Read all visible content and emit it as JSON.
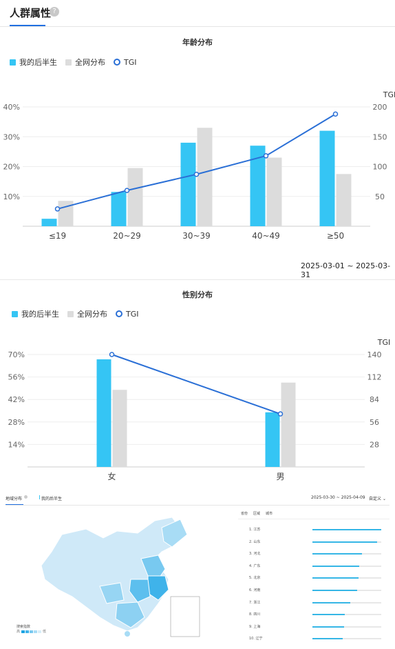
{
  "header": {
    "title": "人群属性",
    "help_icon": "?"
  },
  "age_chart": {
    "title": "年龄分布",
    "date_range": "2025-03-01 ~ 2025-03-31",
    "legend": {
      "series_a": "我的后半生",
      "series_b": "全网分布",
      "line": "TGI"
    }
  },
  "gender_chart": {
    "title": "性别分布",
    "legend": {
      "series_a": "我的后半生",
      "series_b": "全网分布",
      "line": "TGI"
    }
  },
  "geo": {
    "tab_active": "地域分布",
    "tab_filter": "我的后半生",
    "date_range": "2025-03-30 ~ 2025-04-09",
    "custom": "自定义",
    "subtabs": [
      "省份",
      "区域",
      "城市"
    ],
    "map_legend_title": "搜索指数",
    "map_legend_high": "高",
    "map_legend_low": "低",
    "ranking": [
      {
        "label": "1.  江苏",
        "value": 1.0
      },
      {
        "label": "2.  山东",
        "value": 0.94
      },
      {
        "label": "3.  河北",
        "value": 0.72
      },
      {
        "label": "4.  广东",
        "value": 0.68
      },
      {
        "label": "5.  北京",
        "value": 0.67
      },
      {
        "label": "6.  河南",
        "value": 0.65
      },
      {
        "label": "7.  浙江",
        "value": 0.55
      },
      {
        "label": "8.  四川",
        "value": 0.47
      },
      {
        "label": "9.  上海",
        "value": 0.46
      },
      {
        "label": "10. 辽宁",
        "value": 0.44
      }
    ]
  },
  "colors": {
    "series_a": "#35c5f4",
    "series_b": "#dcdcdc",
    "line": "#2a6fd6",
    "accent": "#1f6fe0"
  },
  "chart_data": [
    {
      "type": "bar",
      "title": "年龄分布",
      "categories": [
        "≤19",
        "20~29",
        "30~39",
        "40~49",
        "≥50"
      ],
      "series": [
        {
          "name": "我的后半生",
          "values": [
            2.5,
            11.5,
            28,
            27,
            32
          ]
        },
        {
          "name": "全网分布",
          "values": [
            8.5,
            19.5,
            33,
            23,
            17.5
          ]
        },
        {
          "name": "TGI",
          "values": [
            29,
            60,
            87,
            118,
            188
          ],
          "axis": "right",
          "render": "line"
        }
      ],
      "ylabel_right": "TGI",
      "left_ticks": [
        "10%",
        "20%",
        "30%",
        "40%"
      ],
      "right_ticks": [
        "50",
        "100",
        "150",
        "200"
      ],
      "ylim": [
        0,
        40
      ],
      "ylim_right": [
        0,
        200
      ]
    },
    {
      "type": "bar",
      "title": "性别分布",
      "categories": [
        "女",
        "男"
      ],
      "series": [
        {
          "name": "我的后半生",
          "values": [
            67,
            34
          ]
        },
        {
          "name": "全网分布",
          "values": [
            48,
            52.5
          ]
        },
        {
          "name": "TGI",
          "values": [
            140,
            66
          ],
          "axis": "right",
          "render": "line"
        }
      ],
      "ylabel_right": "TGI",
      "left_ticks": [
        "14%",
        "28%",
        "42%",
        "56%",
        "70%"
      ],
      "right_ticks": [
        "28",
        "56",
        "84",
        "112",
        "140"
      ],
      "ylim": [
        0,
        70
      ],
      "ylim_right": [
        0,
        140
      ]
    }
  ]
}
